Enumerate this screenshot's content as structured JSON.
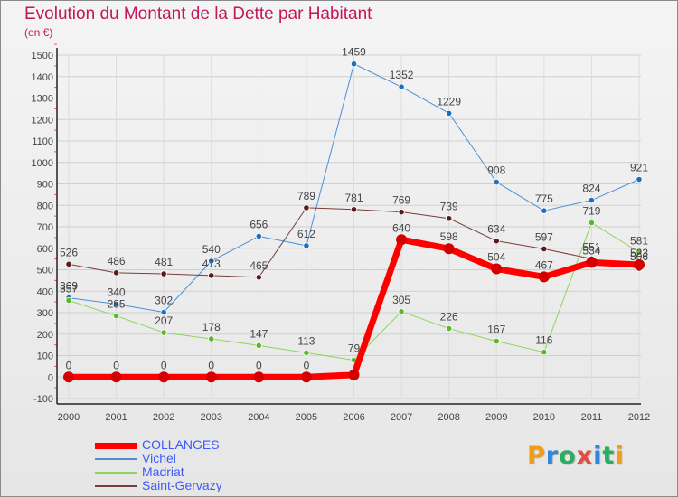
{
  "title": "Evolution du Montant de la Dette par Habitant",
  "subtitle": "(en €)",
  "chart_data": {
    "type": "line",
    "x": [
      "2000",
      "2001",
      "2002",
      "2003",
      "2004",
      "2005",
      "2006",
      "2007",
      "2008",
      "2009",
      "2010",
      "2011",
      "2012"
    ],
    "ylim": [
      -100,
      1500
    ],
    "yticks": [
      -100,
      0,
      100,
      200,
      300,
      400,
      500,
      600,
      700,
      800,
      900,
      1000,
      1100,
      1200,
      1300,
      1400,
      1500
    ],
    "grid": true,
    "series": [
      {
        "name": "Vichel",
        "color": "#4a90d9",
        "point_color": "#1e6fbf",
        "width": 1,
        "values": [
          369,
          340,
          302,
          540,
          656,
          612,
          1459,
          1352,
          1229,
          908,
          775,
          824,
          921
        ],
        "labels": [
          "369",
          "340",
          "302",
          "540",
          "656",
          "612",
          "1459",
          "1352",
          "1229",
          "908",
          "775",
          "824",
          "921"
        ]
      },
      {
        "name": "Madriat",
        "color": "#8ed35a",
        "point_color": "#5cb82a",
        "width": 1,
        "values": [
          357,
          285,
          207,
          178,
          147,
          113,
          79,
          305,
          226,
          167,
          116,
          719,
          581
        ],
        "labels": [
          "357",
          "285",
          "207",
          "178",
          "147",
          "113",
          "79",
          "305",
          "226",
          "167",
          "116",
          "719",
          "581"
        ]
      },
      {
        "name": "Saint-Gervazy",
        "color": "#7a3b3b",
        "point_color": "#5c1a1a",
        "width": 1,
        "values": [
          526,
          486,
          481,
          473,
          465,
          789,
          781,
          769,
          739,
          634,
          597,
          551,
          506
        ],
        "labels": [
          "526",
          "486",
          "481",
          "473",
          "465",
          "789",
          "781",
          "769",
          "739",
          "634",
          "597",
          "551",
          "506"
        ]
      },
      {
        "name": "COLLANGES",
        "color": "#ff0000",
        "point_color": "#d40000",
        "width": 7,
        "values": [
          0,
          0,
          0,
          0,
          0,
          0,
          10,
          640,
          598,
          504,
          467,
          534,
          523
        ],
        "labels": [
          "0",
          "0",
          "0",
          "0",
          "0",
          "0",
          "",
          "640",
          "598",
          "504",
          "467",
          "534",
          "523"
        ]
      }
    ],
    "legend": [
      "COLLANGES",
      "Vichel",
      "Madriat",
      "Saint-Gervazy"
    ],
    "legend_placement": "bottom-left"
  },
  "logo": {
    "letters": [
      "P",
      "r",
      "o",
      "x",
      "i",
      "t",
      "i"
    ],
    "colors": [
      "#f39c12",
      "#2e86de",
      "#27ae60",
      "#e74c3c",
      "#2e86de",
      "#27ae60",
      "#f39c12"
    ]
  }
}
